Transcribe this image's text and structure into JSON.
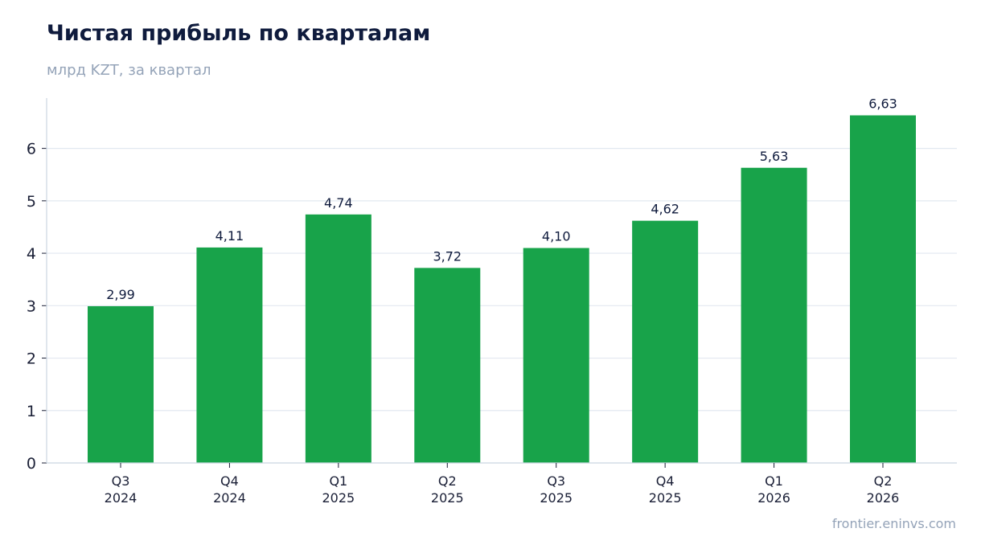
{
  "header": {
    "title": "Чистая прибыль по кварталам",
    "subtitle": "млрд KZT, за квартал"
  },
  "footer": {
    "source": "frontier.eninvs.com"
  },
  "colors": {
    "bar": "#18a34a",
    "grid": "#e2e8f0",
    "axis": "#cbd5e1"
  },
  "chart_data": {
    "type": "bar",
    "title": "Чистая прибыль по кварталам",
    "subtitle": "млрд KZT, за квартал",
    "categories": [
      [
        "Q3",
        "2024"
      ],
      [
        "Q4",
        "2024"
      ],
      [
        "Q1",
        "2025"
      ],
      [
        "Q2",
        "2025"
      ],
      [
        "Q3",
        "2025"
      ],
      [
        "Q4",
        "2025"
      ],
      [
        "Q1",
        "2026"
      ],
      [
        "Q2",
        "2026"
      ]
    ],
    "values": [
      2.99,
      4.11,
      4.74,
      3.72,
      4.1,
      4.62,
      5.63,
      6.63
    ],
    "value_labels": [
      "2,99",
      "4,11",
      "4,74",
      "3,72",
      "4,10",
      "4,62",
      "5,63",
      "6,63"
    ],
    "yticks": [
      0,
      1,
      2,
      3,
      4,
      5,
      6
    ],
    "ylim": [
      0,
      6.96
    ],
    "grid": true,
    "legend": "none"
  }
}
